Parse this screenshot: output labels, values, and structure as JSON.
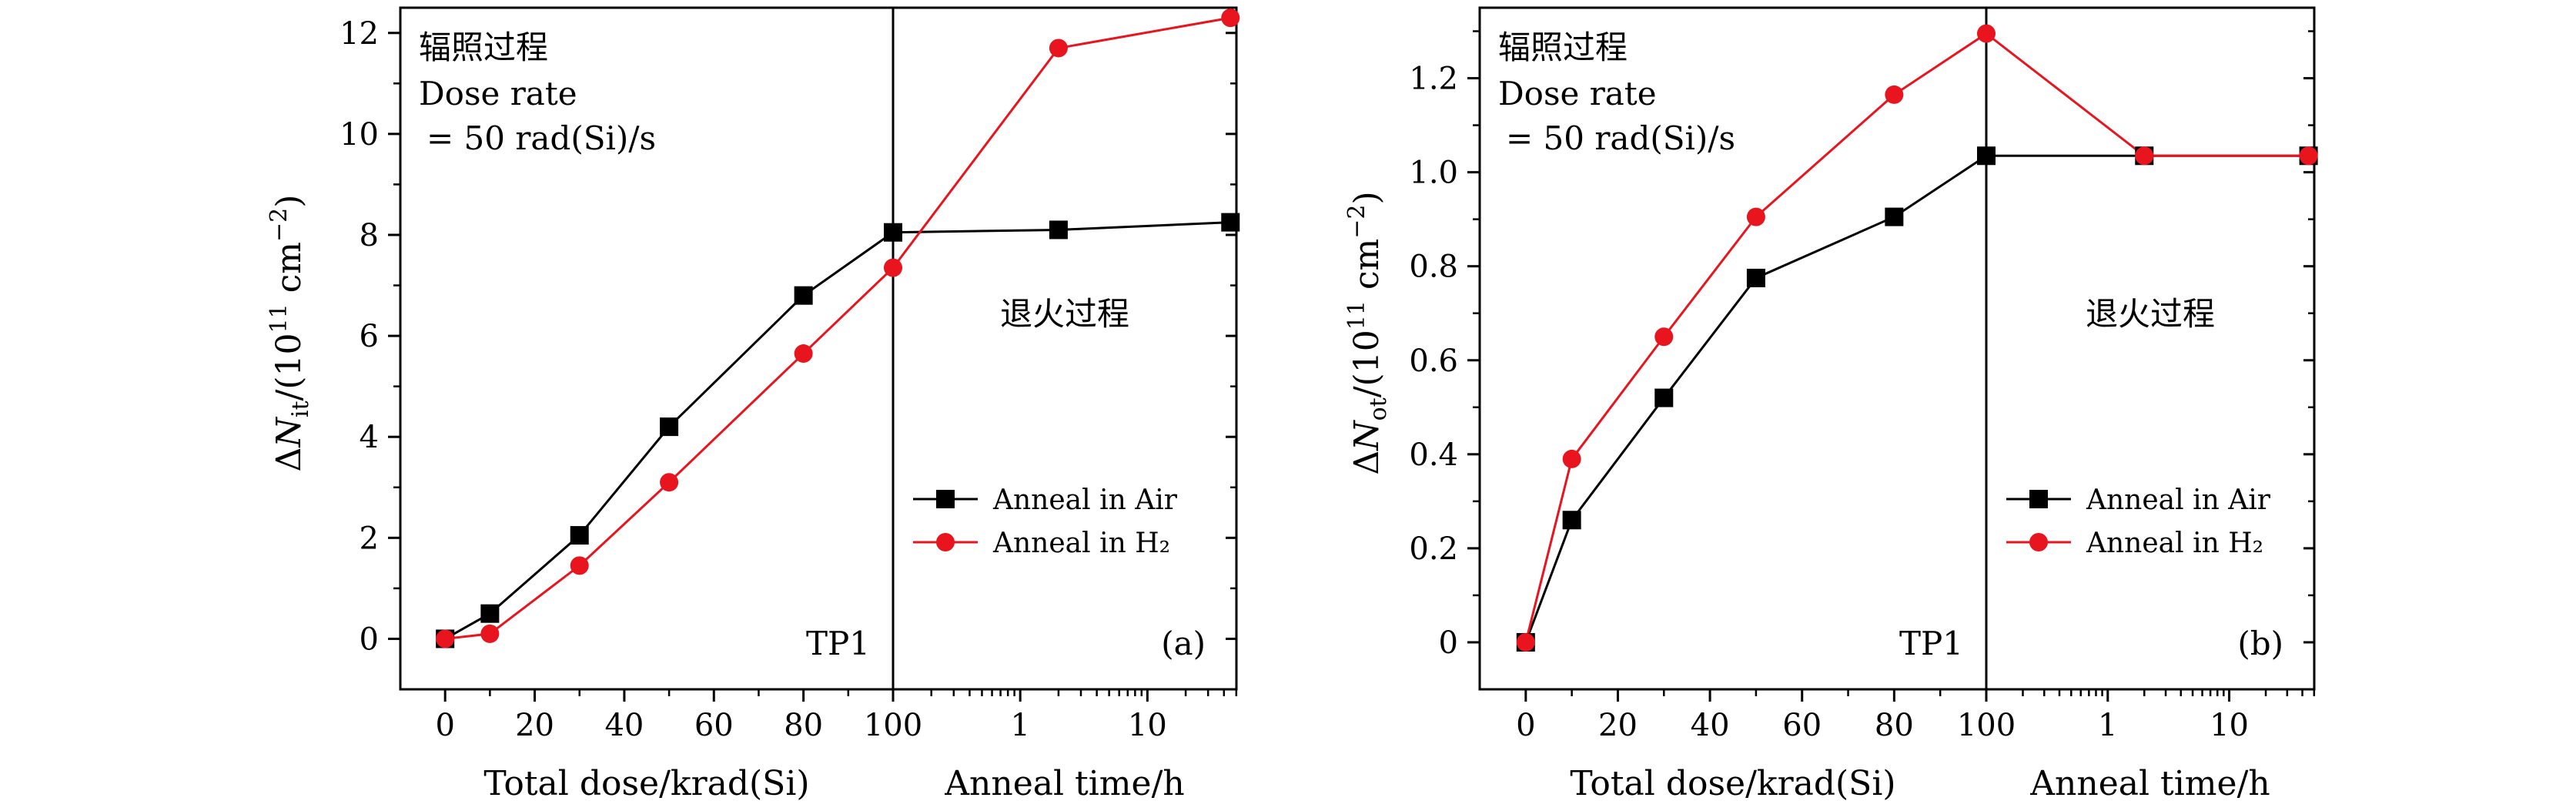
{
  "chart_data": [
    {
      "type": "line",
      "panel_label": "(a)",
      "ylabel_html": "ΔN<sub>it</sub>/(10<sup>11</sup> cm<sup>−2</sup>)",
      "ylabel_parts": {
        "delta": "Δ",
        "sym": "N",
        "sub": "it",
        "pre": "/(10",
        "exp": "11",
        "mid": " cm",
        "exp2": "−2",
        "post": ")"
      },
      "ylim": [
        -1,
        12.5
      ],
      "yticks": [
        "0",
        "2",
        "4",
        "6",
        "8",
        "10",
        "12"
      ],
      "ytick_values": [
        0,
        2,
        4,
        6,
        8,
        10,
        12
      ],
      "left_xlabel": "Total dose/krad(Si)",
      "left_xlim": [
        -10,
        100
      ],
      "left_xticks": [
        "0",
        "20",
        "40",
        "60",
        "80",
        "100"
      ],
      "left_xtick_values": [
        0,
        20,
        40,
        60,
        80,
        100
      ],
      "right_xlabel": "Anneal time/h",
      "right_xscale": "log",
      "right_xlim_log10": [
        -1.0,
        1.7
      ],
      "right_xticks": [
        "1",
        "10"
      ],
      "right_xtick_values": [
        1,
        10
      ],
      "text_irradiation": "辐照过程",
      "text_dose_rate_1": "Dose rate",
      "text_dose_rate_2": "= 50 rad(Si)/s",
      "text_anneal": "退火过程",
      "text_sample": "TP1",
      "legend": [
        "Anneal in Air",
        "Anneal in H₂"
      ],
      "series": [
        {
          "name": "Anneal in Air",
          "color": "#000000",
          "marker": "square",
          "irradiation": {
            "x": [
              0,
              10,
              30,
              50,
              80,
              100
            ],
            "y": [
              0.0,
              0.5,
              2.05,
              4.2,
              6.8,
              8.05
            ]
          },
          "anneal": {
            "x": [
              2,
              45
            ],
            "y": [
              8.1,
              8.25
            ]
          }
        },
        {
          "name": "Anneal in H₂",
          "color": "#e8141e",
          "marker": "circle",
          "irradiation": {
            "x": [
              0,
              10,
              30,
              50,
              80,
              100
            ],
            "y": [
              0.0,
              0.1,
              1.45,
              3.1,
              5.65,
              7.35
            ]
          },
          "anneal": {
            "x": [
              2,
              45
            ],
            "y": [
              11.7,
              12.3
            ]
          }
        }
      ]
    },
    {
      "type": "line",
      "panel_label": "(b)",
      "ylabel_parts": {
        "delta": "Δ",
        "sym": "N",
        "sub": "ot",
        "pre": "/(10",
        "exp": "11",
        "mid": " cm",
        "exp2": "−2",
        "post": ")"
      },
      "ylim": [
        -0.1,
        1.35
      ],
      "yticks": [
        "0",
        "0.2",
        "0.4",
        "0.6",
        "0.8",
        "1.0",
        "1.2"
      ],
      "ytick_values": [
        0,
        0.2,
        0.4,
        0.6,
        0.8,
        1.0,
        1.2
      ],
      "left_xlabel": "Total dose/krad(Si)",
      "left_xlim": [
        -10,
        100
      ],
      "left_xticks": [
        "0",
        "20",
        "40",
        "60",
        "80",
        "100"
      ],
      "left_xtick_values": [
        0,
        20,
        40,
        60,
        80,
        100
      ],
      "right_xlabel": "Anneal time/h",
      "right_xscale": "log",
      "right_xlim_log10": [
        -1.0,
        1.7
      ],
      "right_xticks": [
        "1",
        "10"
      ],
      "right_xtick_values": [
        1,
        10
      ],
      "text_irradiation": "辐照过程",
      "text_dose_rate_1": "Dose rate",
      "text_dose_rate_2": "= 50 rad(Si)/s",
      "text_anneal": "退火过程",
      "text_sample": "TP1",
      "legend": [
        "Anneal in Air",
        "Anneal in H₂"
      ],
      "series": [
        {
          "name": "Anneal in Air",
          "color": "#000000",
          "marker": "square",
          "irradiation": {
            "x": [
              0,
              10,
              30,
              50,
              80,
              100
            ],
            "y": [
              0.0,
              0.26,
              0.52,
              0.775,
              0.905,
              1.035
            ]
          },
          "anneal": {
            "x": [
              2,
              45
            ],
            "y": [
              1.035,
              1.035
            ]
          }
        },
        {
          "name": "Anneal in H₂",
          "color": "#e8141e",
          "marker": "circle",
          "irradiation": {
            "x": [
              0,
              10,
              30,
              50,
              80,
              100
            ],
            "y": [
              0.0,
              0.39,
              0.65,
              0.905,
              1.165,
              1.295
            ]
          },
          "anneal": {
            "x": [
              2,
              45
            ],
            "y": [
              1.035,
              1.035
            ]
          }
        }
      ]
    }
  ]
}
